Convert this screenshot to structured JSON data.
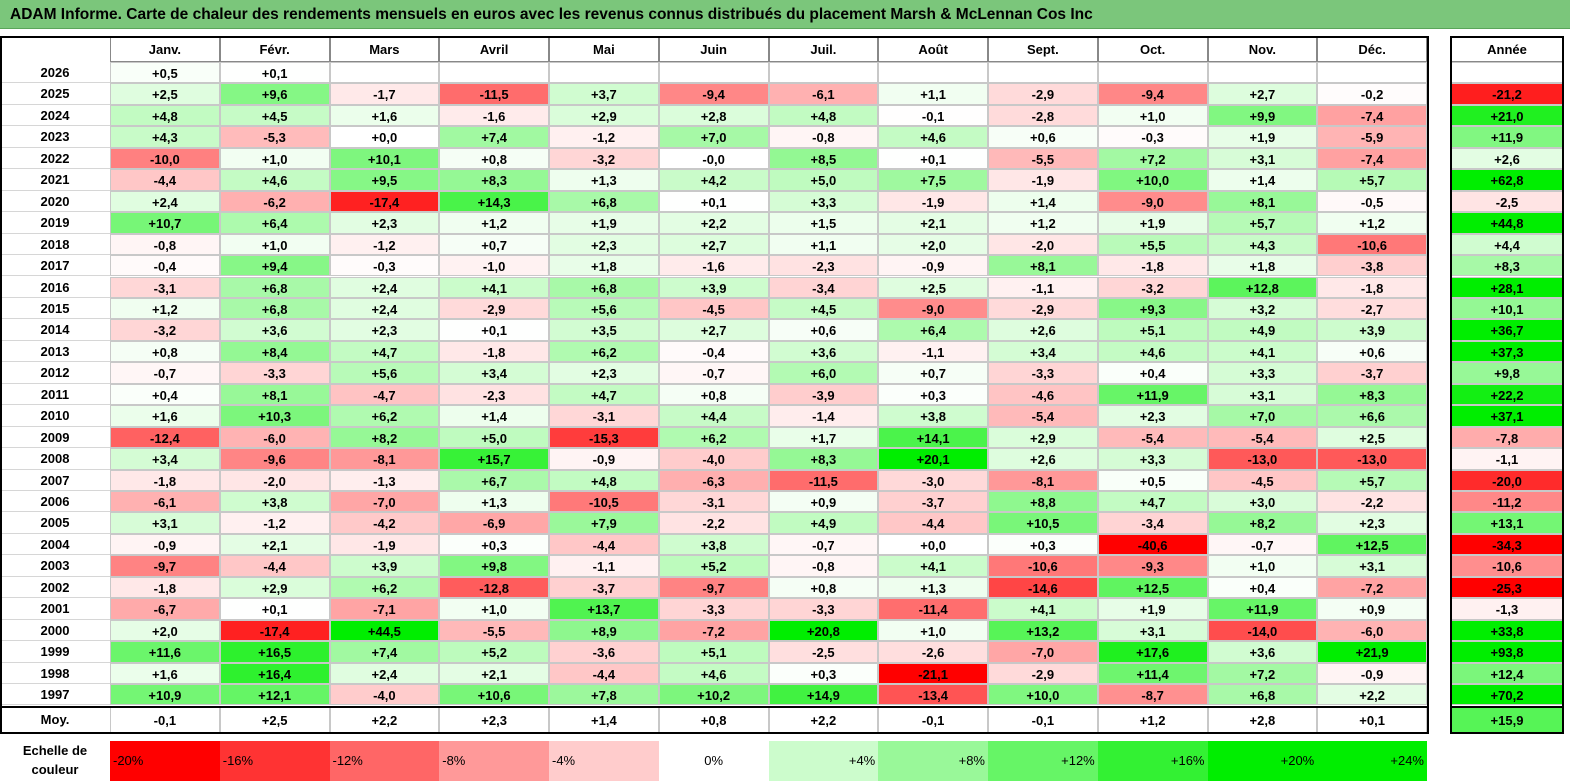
{
  "title": "ADAM Informe. Carte de chaleur des rendements mensuels en euros avec les revenus connus distribués du placement Marsh & McLennan Cos Inc",
  "months": [
    "Janv.",
    "Févr.",
    "Mars",
    "Avril",
    "Mai",
    "Juin",
    "Juil.",
    "Août",
    "Sept.",
    "Oct.",
    "Nov.",
    "Déc."
  ],
  "year_header": "Année",
  "avg_label": "Moy.",
  "scale_label": "Echelle de couleur",
  "scale": [
    "-20%",
    "-16%",
    "-12%",
    "-8%",
    "-4%",
    "0%",
    "+4%",
    "+8%",
    "+12%",
    "+16%",
    "+20%",
    "+24%"
  ],
  "colors": {
    "negative": "#ff0000",
    "neutral": "#ffffff",
    "positive": "#00ee00",
    "title_bg": "#7bc67b"
  },
  "chart_data": {
    "type": "heatmap",
    "value_unit": "%",
    "rows": [
      {
        "year": "2026",
        "months": [
          "+0,5",
          "+0,1",
          "",
          "",
          "",
          "",
          "",
          "",
          "",
          "",
          "",
          ""
        ],
        "annual": ""
      },
      {
        "year": "2025",
        "months": [
          "+2,5",
          "+9,6",
          "-1,7",
          "-11,5",
          "+3,7",
          "-9,4",
          "-6,1",
          "+1,1",
          "-2,9",
          "-9,4",
          "+2,7",
          "-0,2"
        ],
        "annual": "-21,2"
      },
      {
        "year": "2024",
        "months": [
          "+4,8",
          "+4,5",
          "+1,6",
          "-1,6",
          "+2,9",
          "+2,8",
          "+4,8",
          "-0,1",
          "-2,8",
          "+1,0",
          "+9,9",
          "-7,4"
        ],
        "annual": "+21,0"
      },
      {
        "year": "2023",
        "months": [
          "+4,3",
          "-5,3",
          "+0,0",
          "+7,4",
          "-1,2",
          "+7,0",
          "-0,8",
          "+4,6",
          "+0,6",
          "-0,3",
          "+1,9",
          "-5,9"
        ],
        "annual": "+11,9"
      },
      {
        "year": "2022",
        "months": [
          "-10,0",
          "+1,0",
          "+10,1",
          "+0,8",
          "-3,2",
          "-0,0",
          "+8,5",
          "+0,1",
          "-5,5",
          "+7,2",
          "+3,1",
          "-7,4"
        ],
        "annual": "+2,6"
      },
      {
        "year": "2021",
        "months": [
          "-4,4",
          "+4,6",
          "+9,5",
          "+8,3",
          "+1,3",
          "+4,2",
          "+5,0",
          "+7,5",
          "-1,9",
          "+10,0",
          "+1,4",
          "+5,7"
        ],
        "annual": "+62,8"
      },
      {
        "year": "2020",
        "months": [
          "+2,4",
          "-6,2",
          "-17,4",
          "+14,3",
          "+6,8",
          "+0,1",
          "+3,3",
          "-1,9",
          "+1,4",
          "-9,0",
          "+8,1",
          "-0,5"
        ],
        "annual": "-2,5"
      },
      {
        "year": "2019",
        "months": [
          "+10,7",
          "+6,4",
          "+2,3",
          "+1,2",
          "+1,9",
          "+2,2",
          "+1,5",
          "+2,1",
          "+1,2",
          "+1,9",
          "+5,7",
          "+1,2"
        ],
        "annual": "+44,8"
      },
      {
        "year": "2018",
        "months": [
          "-0,8",
          "+1,0",
          "-1,2",
          "+0,7",
          "+2,3",
          "+2,7",
          "+1,1",
          "+2,0",
          "-2,0",
          "+5,5",
          "+4,3",
          "-10,6"
        ],
        "annual": "+4,4"
      },
      {
        "year": "2017",
        "months": [
          "-0,4",
          "+9,4",
          "-0,3",
          "-1,0",
          "+1,8",
          "-1,6",
          "-2,3",
          "-0,9",
          "+8,1",
          "-1,8",
          "+1,8",
          "-3,8"
        ],
        "annual": "+8,3"
      },
      {
        "year": "2016",
        "months": [
          "-3,1",
          "+6,8",
          "+2,4",
          "+4,1",
          "+6,8",
          "+3,9",
          "-3,4",
          "+2,5",
          "-1,1",
          "-3,2",
          "+12,8",
          "-1,8"
        ],
        "annual": "+28,1"
      },
      {
        "year": "2015",
        "months": [
          "+1,2",
          "+6,8",
          "+2,4",
          "-2,9",
          "+5,6",
          "-4,5",
          "+4,5",
          "-9,0",
          "-2,9",
          "+9,3",
          "+3,2",
          "-2,7"
        ],
        "annual": "+10,1"
      },
      {
        "year": "2014",
        "months": [
          "-3,2",
          "+3,6",
          "+2,3",
          "+0,1",
          "+3,5",
          "+2,7",
          "+0,6",
          "+6,4",
          "+2,6",
          "+5,1",
          "+4,9",
          "+3,9"
        ],
        "annual": "+36,7"
      },
      {
        "year": "2013",
        "months": [
          "+0,8",
          "+8,4",
          "+4,7",
          "-1,8",
          "+6,2",
          "-0,4",
          "+3,6",
          "-1,1",
          "+3,4",
          "+4,6",
          "+4,1",
          "+0,6"
        ],
        "annual": "+37,3"
      },
      {
        "year": "2012",
        "months": [
          "-0,7",
          "-3,3",
          "+5,6",
          "+3,4",
          "+2,3",
          "-0,7",
          "+6,0",
          "+0,7",
          "-3,3",
          "+0,4",
          "+3,3",
          "-3,7"
        ],
        "annual": "+9,8"
      },
      {
        "year": "2011",
        "months": [
          "+0,4",
          "+8,1",
          "-4,7",
          "-2,3",
          "+4,7",
          "+0,8",
          "-3,9",
          "+0,3",
          "-4,6",
          "+11,9",
          "+3,1",
          "+8,3"
        ],
        "annual": "+22,2"
      },
      {
        "year": "2010",
        "months": [
          "+1,6",
          "+10,3",
          "+6,2",
          "+1,4",
          "-3,1",
          "+4,4",
          "-1,4",
          "+3,8",
          "-5,4",
          "+2,3",
          "+7,0",
          "+6,6"
        ],
        "annual": "+37,1"
      },
      {
        "year": "2009",
        "months": [
          "-12,4",
          "-6,0",
          "+8,2",
          "+5,0",
          "-15,3",
          "+6,2",
          "+1,7",
          "+14,1",
          "+2,9",
          "-5,4",
          "-5,4",
          "+2,5"
        ],
        "annual": "-7,8"
      },
      {
        "year": "2008",
        "months": [
          "+3,4",
          "-9,6",
          "-8,1",
          "+15,7",
          "-0,9",
          "-4,0",
          "+8,3",
          "+20,1",
          "+2,6",
          "+3,3",
          "-13,0",
          "-13,0"
        ],
        "annual": "-1,1"
      },
      {
        "year": "2007",
        "months": [
          "-1,8",
          "-2,0",
          "-1,3",
          "+6,7",
          "+4,8",
          "-6,3",
          "-11,5",
          "-3,0",
          "-8,1",
          "+0,5",
          "-4,5",
          "+5,7"
        ],
        "annual": "-20,0"
      },
      {
        "year": "2006",
        "months": [
          "-6,1",
          "+3,8",
          "-7,0",
          "+1,3",
          "-10,5",
          "-3,1",
          "+0,9",
          "-3,7",
          "+8,8",
          "+4,7",
          "+3,0",
          "-2,2"
        ],
        "annual": "-11,2"
      },
      {
        "year": "2005",
        "months": [
          "+3,1",
          "-1,2",
          "-4,2",
          "-6,9",
          "+7,9",
          "-2,2",
          "+4,9",
          "-4,4",
          "+10,5",
          "-3,4",
          "+8,2",
          "+2,3"
        ],
        "annual": "+13,1"
      },
      {
        "year": "2004",
        "months": [
          "-0,9",
          "+2,1",
          "-1,9",
          "+0,3",
          "-4,4",
          "+3,8",
          "-0,7",
          "+0,0",
          "+0,3",
          "-40,6",
          "-0,7",
          "+12,5"
        ],
        "annual": "-34,3"
      },
      {
        "year": "2003",
        "months": [
          "-9,7",
          "-4,4",
          "+3,9",
          "+9,8",
          "-1,1",
          "+5,2",
          "-0,8",
          "+4,1",
          "-10,6",
          "-9,3",
          "+1,0",
          "+3,1"
        ],
        "annual": "-10,6"
      },
      {
        "year": "2002",
        "months": [
          "-1,8",
          "+2,9",
          "+6,2",
          "-12,8",
          "-3,7",
          "-9,7",
          "+0,8",
          "+1,3",
          "-14,6",
          "+12,5",
          "+0,4",
          "-7,2"
        ],
        "annual": "-25,3"
      },
      {
        "year": "2001",
        "months": [
          "-6,7",
          "+0,1",
          "-7,1",
          "+1,0",
          "+13,7",
          "-3,3",
          "-3,3",
          "-11,4",
          "+4,1",
          "+1,9",
          "+11,9",
          "+0,9"
        ],
        "annual": "-1,3"
      },
      {
        "year": "2000",
        "months": [
          "+2,0",
          "-17,4",
          "+44,5",
          "-5,5",
          "+8,9",
          "-7,2",
          "+20,8",
          "+1,0",
          "+13,2",
          "+3,1",
          "-14,0",
          "-6,0"
        ],
        "annual": "+33,8"
      },
      {
        "year": "1999",
        "months": [
          "+11,6",
          "+16,5",
          "+7,4",
          "+5,2",
          "-3,6",
          "+5,1",
          "-2,5",
          "-2,6",
          "-7,0",
          "+17,6",
          "+3,6",
          "+21,9"
        ],
        "annual": "+93,8"
      },
      {
        "year": "1998",
        "months": [
          "+1,6",
          "+16,4",
          "+2,4",
          "+2,1",
          "-4,4",
          "+4,6",
          "+0,3",
          "-21,1",
          "-2,9",
          "+11,4",
          "+7,2",
          "-0,9"
        ],
        "annual": "+12,4"
      },
      {
        "year": "1997",
        "months": [
          "+10,9",
          "+12,1",
          "-4,0",
          "+10,6",
          "+7,8",
          "+10,2",
          "+14,9",
          "-13,4",
          "+10,0",
          "-8,7",
          "+6,8",
          "+2,2"
        ],
        "annual": "+70,2"
      }
    ],
    "averages": {
      "months": [
        "-0,1",
        "+2,5",
        "+2,2",
        "+2,3",
        "+1,4",
        "+0,8",
        "+2,2",
        "-0,1",
        "-0,1",
        "+1,2",
        "+2,8",
        "+0,1"
      ],
      "annual": "+15,9"
    }
  }
}
